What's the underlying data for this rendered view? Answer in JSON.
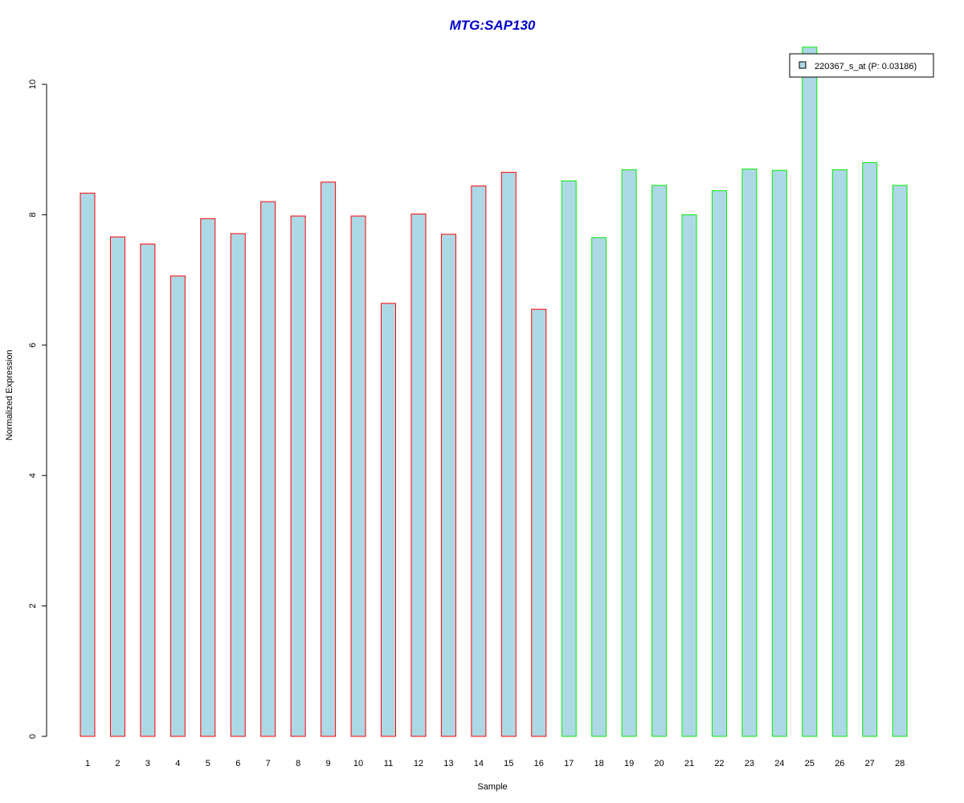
{
  "chart_data": {
    "type": "bar",
    "title": "MTG:SAP130",
    "xlabel": "Sample",
    "ylabel": "Normalized Expression",
    "categories": [
      "1",
      "2",
      "3",
      "4",
      "5",
      "6",
      "7",
      "8",
      "9",
      "10",
      "11",
      "12",
      "13",
      "14",
      "15",
      "16",
      "17",
      "18",
      "19",
      "20",
      "21",
      "22",
      "23",
      "24",
      "25",
      "26",
      "27",
      "28"
    ],
    "values": [
      8.33,
      7.66,
      7.55,
      7.06,
      7.94,
      7.71,
      8.2,
      7.98,
      8.5,
      7.98,
      6.64,
      8.01,
      7.7,
      8.44,
      8.65,
      6.55,
      8.52,
      7.65,
      8.69,
      8.45,
      8.0,
      8.37,
      8.7,
      8.68,
      10.57,
      8.69,
      8.8,
      8.45
    ],
    "groups": [
      1,
      1,
      1,
      1,
      1,
      1,
      1,
      1,
      1,
      1,
      1,
      1,
      1,
      1,
      1,
      1,
      2,
      2,
      2,
      2,
      2,
      2,
      2,
      2,
      2,
      2,
      2,
      2
    ],
    "ylim": [
      0,
      10
    ],
    "yticks": [
      0,
      2,
      4,
      6,
      8,
      10
    ],
    "grid": false,
    "legend": {
      "label": "220367_s_at (P: 0.03186)",
      "position": "top-right"
    },
    "colors": {
      "title": "#0000cc",
      "bar_fill": "#add8e6",
      "group1_border": "#ff0000",
      "group2_border": "#00ee00"
    }
  }
}
